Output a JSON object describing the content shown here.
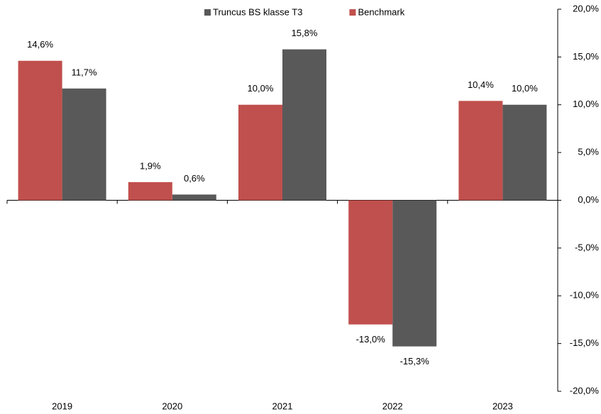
{
  "chart_data": {
    "type": "bar",
    "categories": [
      "2019",
      "2020",
      "2021",
      "2022",
      "2023"
    ],
    "series": [
      {
        "name": "Truncus BS klasse T3",
        "color": "#595959",
        "values": [
          11.7,
          0.6,
          15.8,
          -15.3,
          10.0
        ],
        "value_labels": [
          "11,7%",
          "0,6%",
          "15,8%",
          "-15,3%",
          "10,0%"
        ]
      },
      {
        "name": "Benchmark",
        "color": "#c0504d",
        "values": [
          14.6,
          1.9,
          10.0,
          -13.0,
          10.4
        ],
        "value_labels": [
          "14,6%",
          "1,9%",
          "10,0%",
          "-13,0%",
          "10,4%"
        ]
      }
    ],
    "ylim": [
      -20,
      20
    ],
    "yticks": [
      {
        "value": -20,
        "label": "-20,0%"
      },
      {
        "value": -15,
        "label": "-15,0%"
      },
      {
        "value": -10,
        "label": "-10,0%"
      },
      {
        "value": -5,
        "label": "-5,0%"
      },
      {
        "value": 0,
        "label": "0,0%"
      },
      {
        "value": 5,
        "label": "5,0%"
      },
      {
        "value": 10,
        "label": "10,0%"
      },
      {
        "value": 15,
        "label": "15,0%"
      },
      {
        "value": 20,
        "label": "20,0%"
      }
    ],
    "y_axis_side": "right",
    "legend": "top"
  }
}
